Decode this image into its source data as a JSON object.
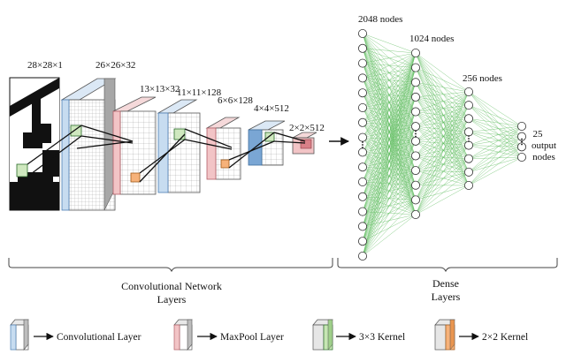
{
  "conv_layers": [
    {
      "label": "28×28×1"
    },
    {
      "label": "26×26×32"
    },
    {
      "label": "13×13×32"
    },
    {
      "label": "11×11×128"
    },
    {
      "label": "6×6×128"
    },
    {
      "label": "4×4×512"
    },
    {
      "label": "2×2×512"
    }
  ],
  "dense_layers": [
    {
      "title": "2048 nodes",
      "shown_nodes": 16
    },
    {
      "title": "1024 nodes",
      "shown_nodes": 12
    },
    {
      "title": "256 nodes",
      "shown_nodes": 8
    },
    {
      "title_lines": [
        "25",
        "output",
        "nodes"
      ],
      "shown_nodes": 4
    }
  ],
  "groups": {
    "conv": [
      "Convolutional Network",
      "Layers"
    ],
    "dense": [
      "Dense",
      "Layers"
    ]
  },
  "legend": [
    {
      "label": "Convolutional Layer",
      "icon": "conv-block-icon"
    },
    {
      "label": "MaxPool Layer",
      "icon": "maxpool-block-icon"
    },
    {
      "label": "3×3 Kernel",
      "icon": "kernel3-block-icon"
    },
    {
      "label": "2×2 Kernel",
      "icon": "kernel2-block-icon"
    }
  ],
  "colors": {
    "conv_blue": "#c7dcf0",
    "conv_blue_dark": "#7aa6d4",
    "maxpool_red": "#f2c4c6",
    "maxpool_red_dark": "#d98088",
    "kernel_green": "#c6e6b3",
    "kernel_orange": "#f6b27a",
    "edge_green": "#5bbb5b"
  }
}
